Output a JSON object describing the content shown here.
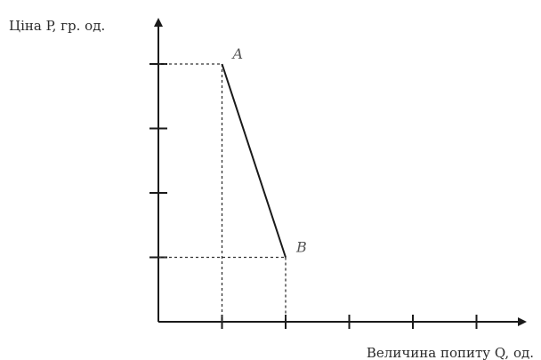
{
  "chart_data": {
    "type": "line",
    "title": "",
    "ylabel": "Ціна P, гр. од.",
    "xlabel": "Величина попиту Q, од.",
    "x_ticks": [
      1,
      2,
      3,
      4,
      5
    ],
    "y_ticks": [
      1,
      2,
      3,
      4
    ],
    "xlim": [
      0,
      5.8
    ],
    "ylim": [
      0,
      5.2
    ],
    "grid": false,
    "series": [
      {
        "values": [
          {
            "label": "A",
            "x": 1,
            "y": 4
          },
          {
            "label": "B",
            "x": 2,
            "y": 1
          }
        ]
      }
    ],
    "guides": "dashed projections from A and B to both axes",
    "colors": {
      "line": "#1a1a1a",
      "guide": "#333333",
      "point_label": "#555555"
    }
  }
}
